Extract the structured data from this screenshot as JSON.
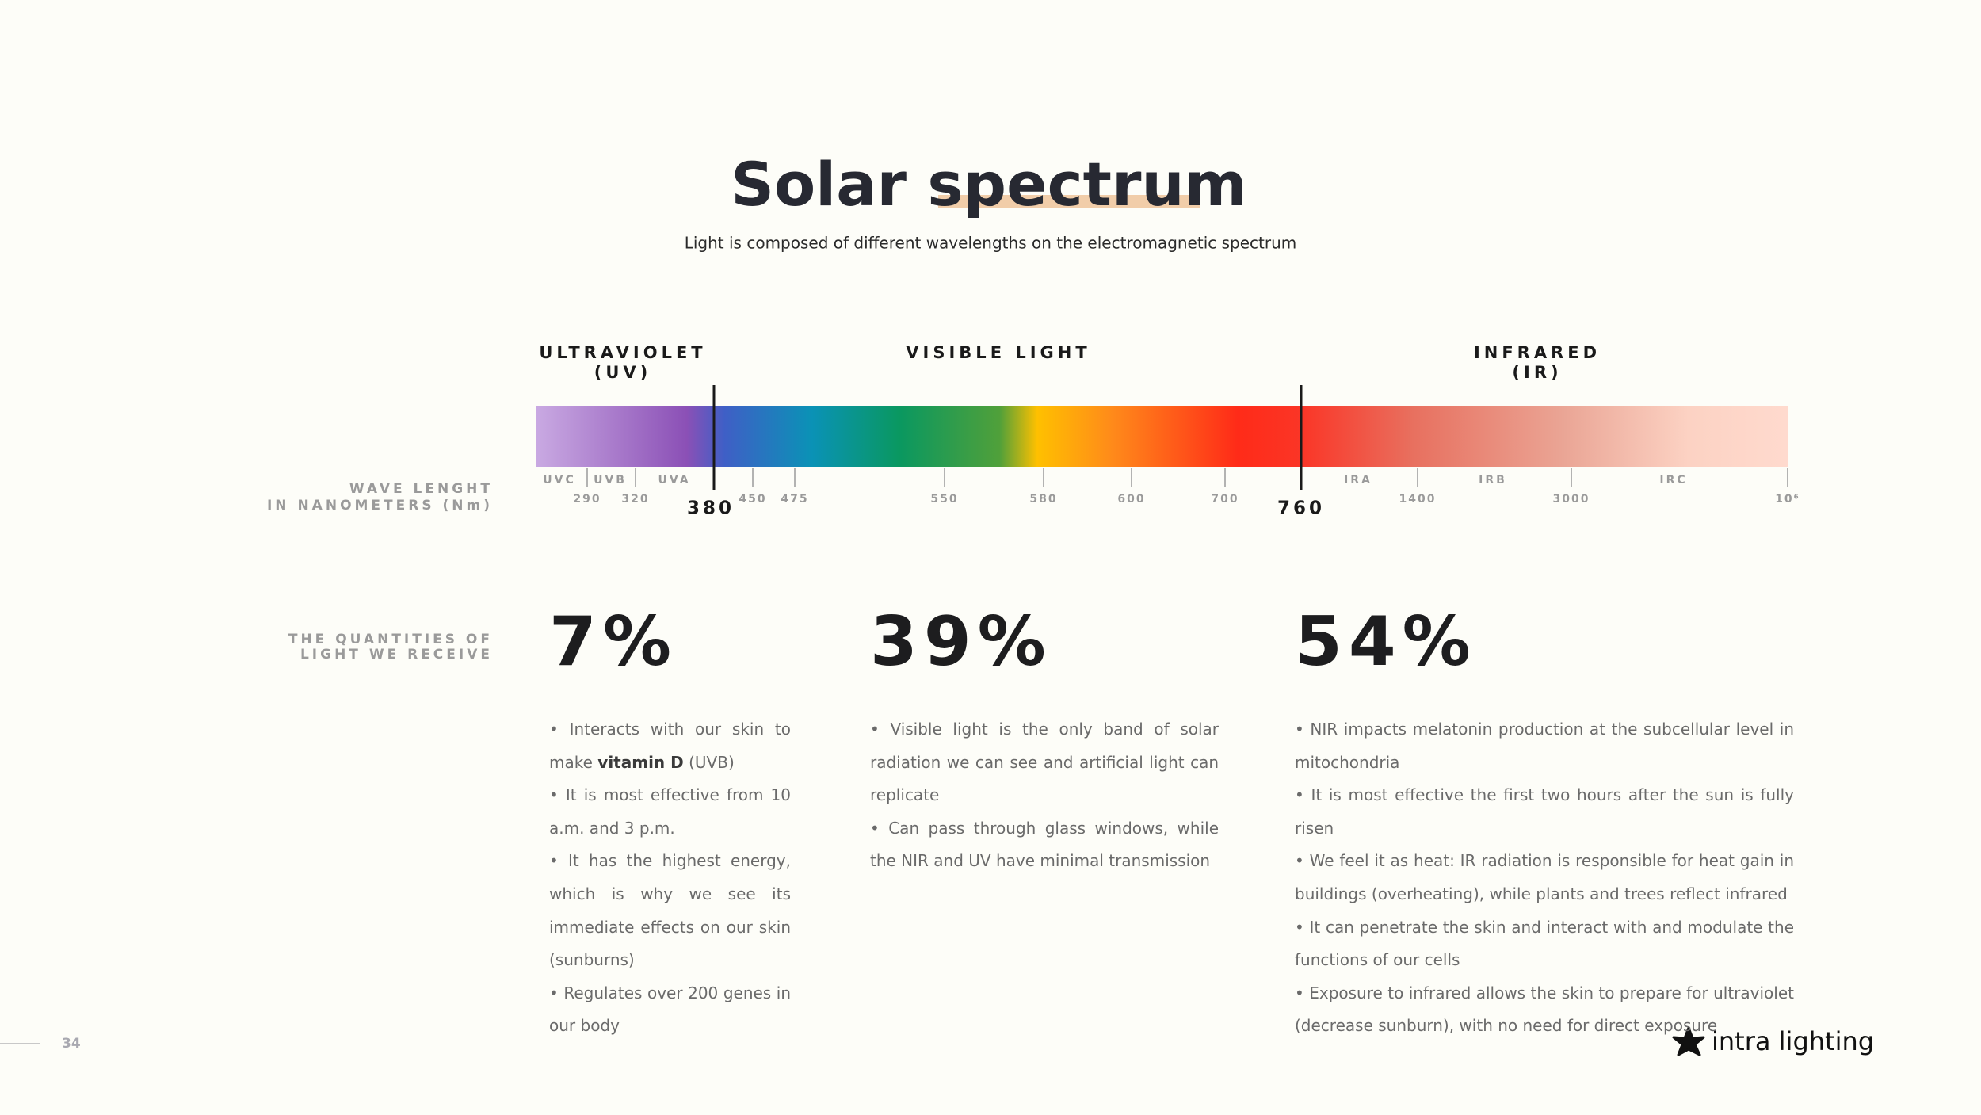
{
  "header": {
    "title": "Solar spectrum",
    "subtitle": "Light is composed of different wavelengths on the electromagnetic spectrum"
  },
  "regions": [
    {
      "name": "ULTRAVIOLET",
      "abbr": "(UV)"
    },
    {
      "name": "VISIBLE LIGHT"
    },
    {
      "name": "INFRARED",
      "abbr": "(IR)"
    }
  ],
  "axis_label": [
    "WAVE LENGHT",
    "IN NANOMETERS (Nm)"
  ],
  "bands": [
    "UVC",
    "UVB",
    "UVA",
    "IRA",
    "IRB",
    "IRC"
  ],
  "wavelengths": [
    "290",
    "320",
    "380",
    "450",
    "475",
    "550",
    "580",
    "600",
    "700",
    "760",
    "1400",
    "3000",
    "10⁶"
  ],
  "quantities_label": [
    "THE QUANTITIES OF",
    "LIGHT WE RECEIVE"
  ],
  "columns": [
    {
      "percent": "7%",
      "bullets": [
        {
          "text": "Interacts with our skin to make",
          "bold": "vitamin D",
          "suffix": "(UVB)"
        },
        "It is most effective from 10 a.m. and 3 p.m.",
        "It has the highest energy, which is why we see its immediate effects on our skin (sunburns)",
        "Regulates over 200 genes in our body"
      ]
    },
    {
      "percent": "39%",
      "bullets": [
        "Visible light is the only band of solar radiation we can see and artificial light can replicate",
        "Can pass through glass windows, while the NIR and UV have minimal transmission"
      ]
    },
    {
      "percent": "54%",
      "bullets": [
        "NIR impacts melatonin production at the subcellular level in mitochondria",
        "It is most effective the first two hours after the sun is fully risen",
        "We feel it as heat: IR radiation is responsible for heat gain in buildings (overheating), while plants and trees reflect infrared",
        "It can penetrate the skin and interact with and modulate the functions of our cells",
        "Exposure to infrared allows the skin to prepare for ultraviolet (decrease sunburn), with no need for direct exposure"
      ]
    }
  ],
  "footer": {
    "page": "34",
    "brand": "intra lighting"
  }
}
